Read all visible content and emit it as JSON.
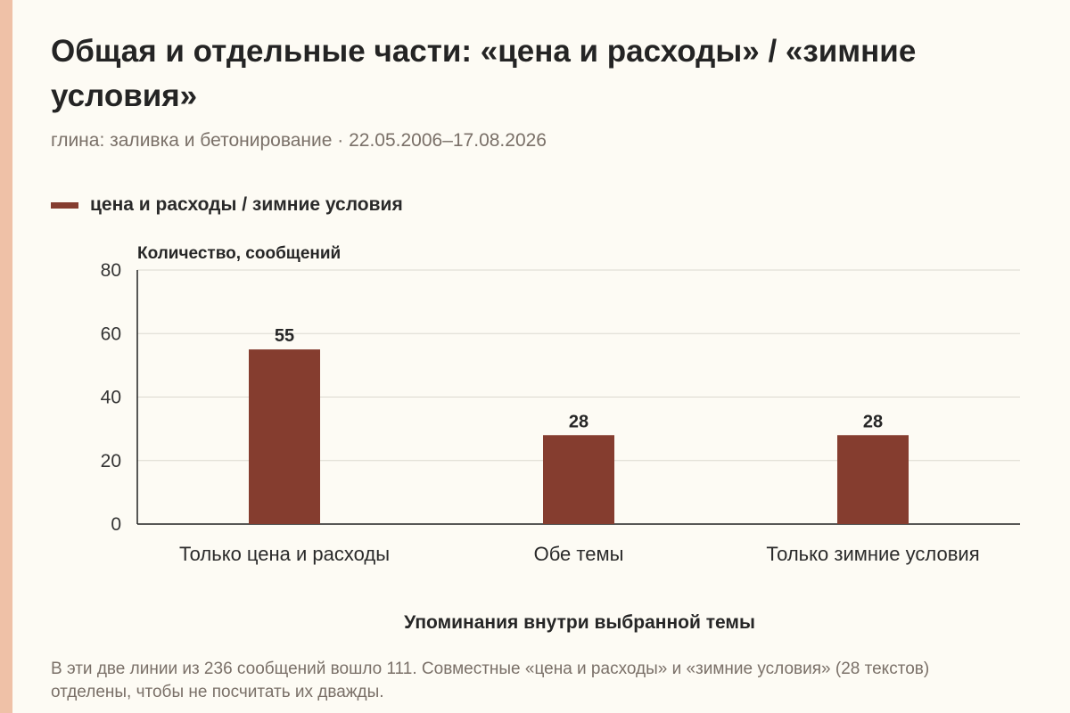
{
  "header": {
    "title": "Общая и отдельные части: «цена и расходы» / «зимние условия»",
    "subtitle": "глина: заливка и бетонирование · 22.05.2006–17.08.2026"
  },
  "colors": {
    "bar": "#853d2f",
    "edge_strip": "#efc1a7",
    "background": "#fdfbf4",
    "grid": "#dcd9d0"
  },
  "chart_data": {
    "type": "bar",
    "legend": "top-left",
    "grid": true,
    "categories": [
      "Только цена и расходы",
      "Обе темы",
      "Только зимние условия"
    ],
    "series": [
      {
        "name": "цена и расходы / зимние условия",
        "values": [
          55,
          28,
          28
        ]
      }
    ],
    "ylabel": "Количество, сообщений",
    "xlabel": "Упоминания внутри выбранной темы",
    "ylim": [
      0,
      80
    ],
    "yticks": [
      0,
      20,
      40,
      60,
      80
    ]
  },
  "footnote": "В эти две линии из 236 сообщений вошло 111. Совместные «цена и расходы» и «зимние условия» (28 текстов) отделены, чтобы не посчитать их дважды."
}
